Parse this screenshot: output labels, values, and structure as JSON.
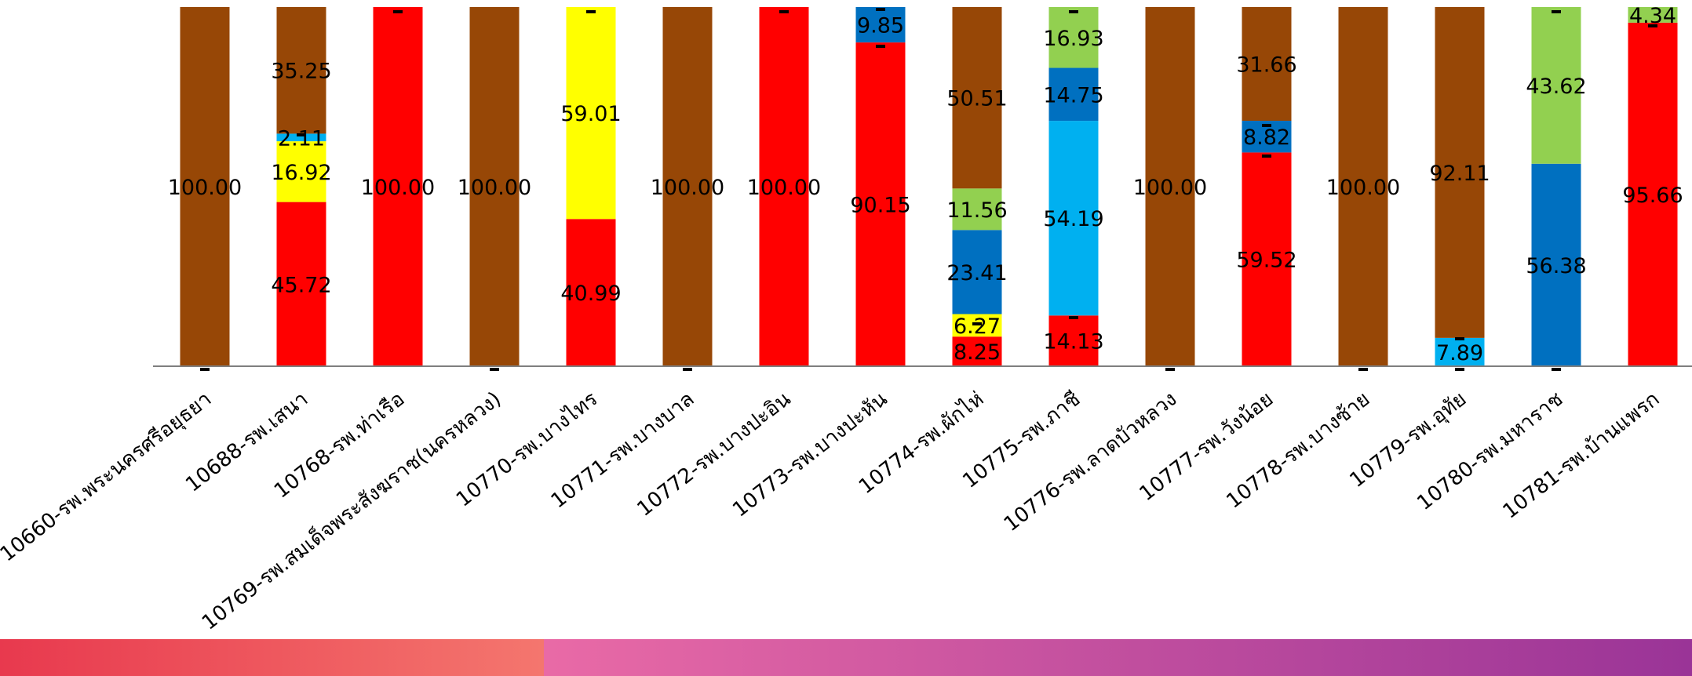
{
  "colors": {
    "brown": "#974706",
    "red": "#FF0000",
    "yellow": "#FFFF00",
    "lightblue": "#00B0F0",
    "blue": "#0070C0",
    "green": "#92D050",
    "axis": "#7f7f7f",
    "band_left_from": "#E8394E",
    "band_left_to": "#F4766E",
    "band_right_from": "#E96AA6",
    "band_right_to": "#9A3497"
  },
  "chart_data": {
    "type": "bar",
    "stacked": true,
    "percent": true,
    "ylim": [
      0,
      100
    ],
    "categories": [
      "10660-รพ.พระนครศรีอยุธยา",
      "10688-รพ.เสนา",
      "10768-รพ.ท่าเรือ",
      "10769-รพ.สมเด็จพระสังฆราช(นครหลวง)",
      "10770-รพ.บางไทร",
      "10771-รพ.บางบาล",
      "10772-รพ.บางปะอิน",
      "10773-รพ.บางปะหัน",
      "10774-รพ.ผักไห่",
      "10775-รพ.ภาชี",
      "10776-รพ.ลาดบัวหลวง",
      "10777-รพ.วังน้อย",
      "10778-รพ.บางซ้าย",
      "10779-รพ.อุทัย",
      "10780-รพ.มหาราช",
      "10781-รพ.บ้านแพรก"
    ],
    "series": [
      {
        "color": "red",
        "values": [
          null,
          45.72,
          100.0,
          null,
          40.99,
          null,
          100.0,
          90.15,
          8.25,
          14.13,
          null,
          59.52,
          null,
          null,
          null,
          95.66
        ]
      },
      {
        "color": "yellow",
        "values": [
          null,
          16.92,
          null,
          null,
          59.01,
          null,
          null,
          null,
          6.27,
          null,
          null,
          null,
          null,
          null,
          null,
          null
        ]
      },
      {
        "color": "lightblue",
        "values": [
          null,
          2.11,
          null,
          null,
          null,
          null,
          null,
          null,
          null,
          54.19,
          null,
          null,
          null,
          7.89,
          null,
          null
        ]
      },
      {
        "color": "blue",
        "values": [
          null,
          null,
          null,
          null,
          null,
          null,
          null,
          9.85,
          23.41,
          14.75,
          null,
          8.82,
          null,
          null,
          56.38,
          null
        ]
      },
      {
        "color": "green",
        "values": [
          null,
          null,
          null,
          null,
          null,
          null,
          null,
          null,
          11.56,
          16.93,
          null,
          null,
          null,
          null,
          43.62,
          4.34
        ]
      },
      {
        "color": "brown",
        "values": [
          100.0,
          35.25,
          null,
          100.0,
          null,
          100.0,
          null,
          null,
          50.51,
          null,
          100.0,
          31.66,
          100.0,
          92.11,
          null,
          null
        ]
      }
    ],
    "value_labels": [
      [
        "",
        "45.72",
        "100.00",
        "",
        "40.99",
        "",
        "100.00",
        "90.15",
        "8.25",
        "14.13",
        "",
        "59.52",
        "",
        "",
        "",
        "95.66"
      ],
      [
        "",
        "16.92",
        "",
        "",
        "59.01",
        "",
        "",
        "",
        "6.27",
        "",
        "",
        "",
        "",
        "",
        "",
        ""
      ],
      [
        "",
        "2.11",
        "",
        "",
        "",
        "",
        "",
        "",
        "",
        "54.19",
        "",
        "",
        "",
        "7.89",
        "",
        ""
      ],
      [
        "",
        "",
        "",
        "",
        "",
        "",
        "",
        "9.85",
        "23.41",
        "14.75",
        "",
        "8.82",
        "",
        "",
        "56.38",
        ""
      ],
      [
        "",
        "",
        "",
        "",
        "",
        "",
        "",
        "",
        "11.56",
        "16.93",
        "",
        "",
        "",
        "",
        "43.62",
        "4.34"
      ],
      [
        "100.00",
        "35.25",
        "",
        "100.00",
        "",
        "100.00",
        "",
        "",
        "50.51",
        "",
        "100.00",
        "31.66",
        "100.00",
        "92.11",
        "",
        ""
      ]
    ],
    "zero_marker": "-",
    "grid": false,
    "legend": "none"
  }
}
